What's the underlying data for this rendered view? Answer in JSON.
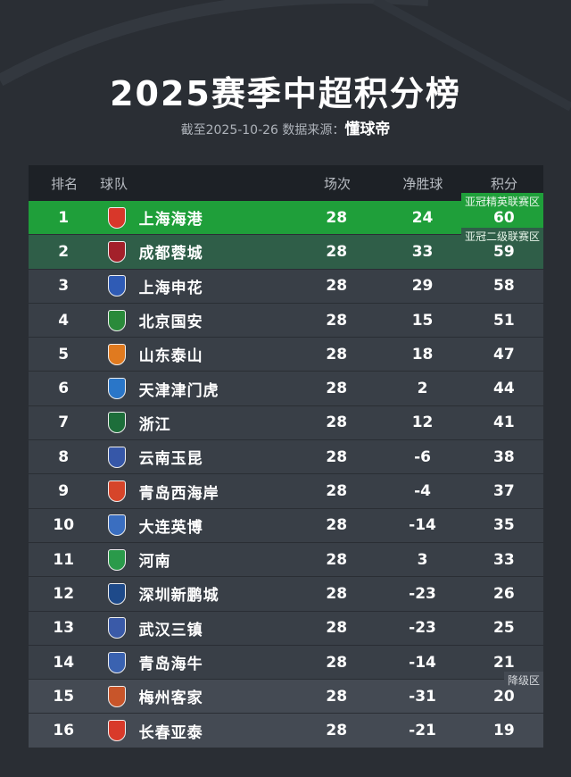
{
  "title": "2025赛季中超积分榜",
  "subtitle": {
    "prefix": "截至2025-10-26 数据来源：",
    "source": "懂球帝"
  },
  "headers": {
    "rank": "排名",
    "team": "球队",
    "played": "场次",
    "gd": "净胜球",
    "points": "积分"
  },
  "zones": {
    "acl_elite": "亚冠精英联赛区",
    "acl_two": "亚冠二级联赛区",
    "relegation": "降级区"
  },
  "colors": {
    "acl_elite": "#1f9f3a",
    "acl_two": "#2f5e48",
    "relegation": "#444a53",
    "row": "#393f47"
  },
  "rows": [
    {
      "rank": "1",
      "team": "上海海港",
      "played": "28",
      "gd": "24",
      "points": "60",
      "logo": "#d8372a"
    },
    {
      "rank": "2",
      "team": "成都蓉城",
      "played": "28",
      "gd": "33",
      "points": "59",
      "logo": "#a3202a"
    },
    {
      "rank": "3",
      "team": "上海申花",
      "played": "28",
      "gd": "29",
      "points": "58",
      "logo": "#2f5bb5"
    },
    {
      "rank": "4",
      "team": "北京国安",
      "played": "28",
      "gd": "15",
      "points": "51",
      "logo": "#2a8a3a"
    },
    {
      "rank": "5",
      "team": "山东泰山",
      "played": "28",
      "gd": "18",
      "points": "47",
      "logo": "#e07a1f"
    },
    {
      "rank": "6",
      "team": "天津津门虎",
      "played": "28",
      "gd": "2",
      "points": "44",
      "logo": "#2a76c8"
    },
    {
      "rank": "7",
      "team": "浙江",
      "played": "28",
      "gd": "12",
      "points": "41",
      "logo": "#1d6e3a"
    },
    {
      "rank": "8",
      "team": "云南玉昆",
      "played": "28",
      "gd": "-6",
      "points": "38",
      "logo": "#3657a8"
    },
    {
      "rank": "9",
      "team": "青岛西海岸",
      "played": "28",
      "gd": "-4",
      "points": "37",
      "logo": "#d6452a"
    },
    {
      "rank": "10",
      "team": "大连英博",
      "played": "28",
      "gd": "-14",
      "points": "35",
      "logo": "#3a6ec0"
    },
    {
      "rank": "11",
      "team": "河南",
      "played": "28",
      "gd": "3",
      "points": "33",
      "logo": "#2a9a4a"
    },
    {
      "rank": "12",
      "team": "深圳新鹏城",
      "played": "28",
      "gd": "-23",
      "points": "26",
      "logo": "#1e4a8a"
    },
    {
      "rank": "13",
      "team": "武汉三镇",
      "played": "28",
      "gd": "-23",
      "points": "25",
      "logo": "#3a5aa8"
    },
    {
      "rank": "14",
      "team": "青岛海牛",
      "played": "28",
      "gd": "-14",
      "points": "21",
      "logo": "#3a62b0"
    },
    {
      "rank": "15",
      "team": "梅州客家",
      "played": "28",
      "gd": "-31",
      "points": "20",
      "logo": "#c8552a"
    },
    {
      "rank": "16",
      "team": "长春亚泰",
      "played": "28",
      "gd": "-21",
      "points": "19",
      "logo": "#d83a2a"
    }
  ]
}
